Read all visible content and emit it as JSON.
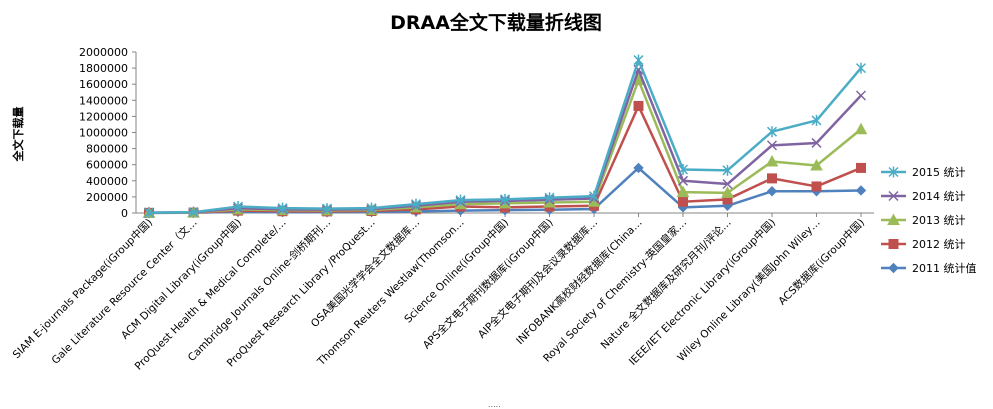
{
  "chart_data": {
    "type": "line",
    "title": "DRAA全文下载量折线图",
    "ylabel": "全文下载量",
    "xlabel": "",
    "ylim": [
      0,
      2000000
    ],
    "yticks": [
      "2000000",
      "1800000",
      "1600000",
      "1400000",
      "1200000",
      "1000000",
      "800000",
      "600000",
      "400000",
      "200000",
      "0"
    ],
    "grid": false,
    "legend_position": "right",
    "categories": [
      "SIAM E-journals Package(iGroup中国)",
      "Gale Literature Resource Center（文…",
      "ACM Digital Library(iGroup中国)",
      "ProQuest Health & Medical Complete/…",
      "Cambridge Journals Online-剑桥期刊…",
      "ProQuest Research Library /ProQuest…",
      "OSA美国光学学会全文数据库…",
      "Thomson Reuters Westlaw(Thomson…",
      "Science Online(iGroup中国)",
      "APS全文电子期刊数据库(iGroup中国)",
      "AIP全文电子期刊及会议录数据库…",
      "INFOBANK高校财经数据库(China…",
      "Royal Society of Chemistry-英国皇家…",
      "Nature 全文数据库及研究月刊/评论…",
      "IEEE/IET Electronic Library(iGroup中国)",
      "Wiley Online Library(美国John Wiley…",
      "ACS数据库(iGroup中国)"
    ],
    "series": [
      {
        "name": "2015 统计",
        "color": "#4bacc6",
        "marker": "asterisk",
        "values": [
          5000,
          10000,
          80000,
          60000,
          55000,
          60000,
          110000,
          160000,
          170000,
          190000,
          210000,
          1900000,
          540000,
          530000,
          1010000,
          1150000,
          1800000
        ]
      },
      {
        "name": "2014 统计",
        "color": "#8064a2",
        "marker": "x",
        "values": [
          4000,
          8000,
          60000,
          45000,
          42000,
          48000,
          90000,
          140000,
          150000,
          165000,
          180000,
          1780000,
          400000,
          360000,
          840000,
          870000,
          1460000
        ]
      },
      {
        "name": "2013 统计",
        "color": "#9bbb59",
        "marker": "triangle",
        "values": [
          3000,
          6000,
          45000,
          35000,
          32000,
          38000,
          70000,
          110000,
          120000,
          130000,
          140000,
          1650000,
          260000,
          250000,
          640000,
          590000,
          1040000
        ]
      },
      {
        "name": "2012 统计",
        "color": "#c0504d",
        "marker": "square",
        "values": [
          2000,
          5000,
          30000,
          22000,
          20000,
          25000,
          45000,
          80000,
          70000,
          80000,
          90000,
          1330000,
          140000,
          170000,
          430000,
          330000,
          560000
        ]
      },
      {
        "name": "2011 统计值",
        "color": "#4f81bd",
        "marker": "diamond",
        "values": [
          1000,
          3000,
          15000,
          10000,
          9000,
          12000,
          20000,
          30000,
          35000,
          40000,
          50000,
          560000,
          70000,
          90000,
          270000,
          270000,
          280000
        ]
      }
    ]
  },
  "footer": {
    "resize_grip": "....."
  }
}
